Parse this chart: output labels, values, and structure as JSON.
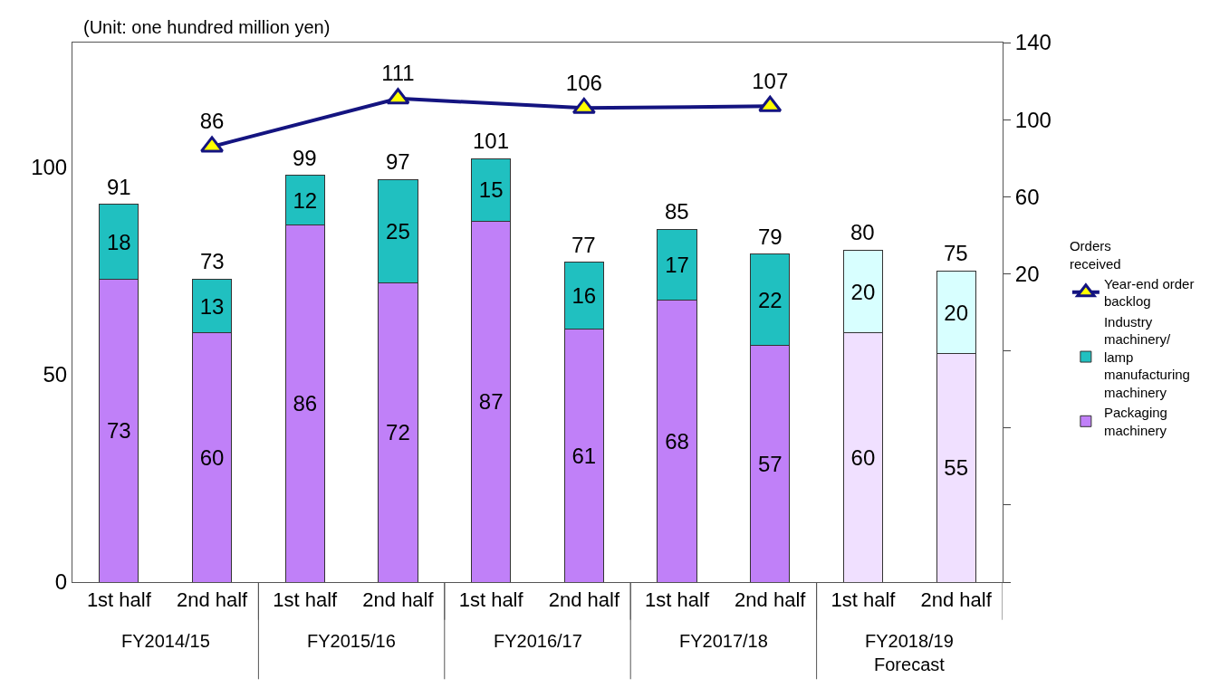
{
  "chart_data": {
    "type": "bar",
    "stacked": true,
    "categories": [
      "1st half",
      "2nd half",
      "1st half",
      "2nd half",
      "1st half",
      "2nd half",
      "1st half",
      "2nd half",
      "1st half",
      "2nd half"
    ],
    "series": [
      {
        "name": "Packaging machinery",
        "colors": [
          "#c080f8",
          "#c080f8",
          "#c080f8",
          "#c080f8",
          "#c080f8",
          "#c080f8",
          "#c080f8",
          "#c080f8",
          "#f0e0ff",
          "#f0e0ff"
        ],
        "values": [
          73,
          60,
          86,
          72,
          87,
          61,
          68,
          57,
          60,
          55
        ]
      },
      {
        "name": "Industry machinery/ lamp manufacturing machinery",
        "colors": [
          "#20c0c0",
          "#20c0c0",
          "#20c0c0",
          "#20c0c0",
          "#20c0c0",
          "#20c0c0",
          "#20c0c0",
          "#20c0c0",
          "#d8ffff",
          "#d8ffff"
        ],
        "values": [
          18,
          13,
          12,
          25,
          15,
          16,
          17,
          22,
          20,
          20
        ]
      },
      {
        "name": "Year-end order backlog",
        "type": "line",
        "axis": "y2",
        "color": "#141480",
        "marker": "triangle",
        "values": [
          null,
          86,
          null,
          111,
          null,
          106,
          null,
          107,
          null,
          null
        ]
      }
    ],
    "totals": [
      "91",
      "73",
      "99",
      "97",
      "101",
      "77",
      "85",
      "79",
      "80",
      "75"
    ],
    "data_labels": true,
    "legend_title": "Orders received",
    "legend": "right",
    "annotations": [
      "(Unit: one hundred million yen)",
      "FY2014/15",
      "FY2015/16",
      "FY2016/17",
      "FY2017/18",
      "FY2018/19\nForecast"
    ],
    "ylim": [
      0,
      130
    ],
    "yticks": [
      0,
      50,
      100
    ],
    "y2lim": [
      -140,
      140
    ],
    "y2ticks": [
      {
        "value": -140,
        "label": null
      },
      {
        "value": -100,
        "label": null
      },
      {
        "value": -60,
        "label": null
      },
      {
        "value": -20,
        "label": null
      },
      20,
      60,
      100,
      140
    ],
    "grid": false
  }
}
